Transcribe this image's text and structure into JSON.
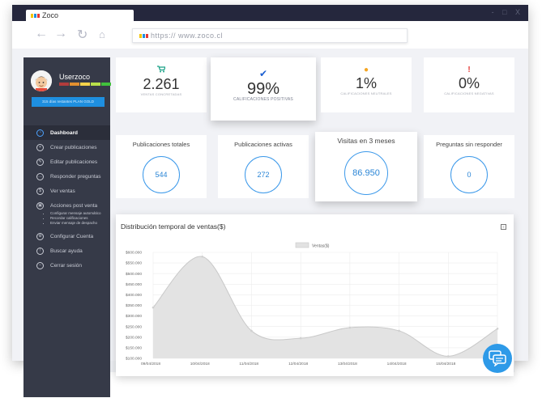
{
  "browser": {
    "tab_title": "Zoco",
    "url": "https:// www.zoco.cl",
    "window_controls": "- □ X",
    "logo_colors": [
      "#f5c400",
      "#1e8fe0",
      "#e53935"
    ]
  },
  "sidebar": {
    "username": "Userzoco",
    "plan_text": "315 días restantes PLAN GOLD",
    "reputation_colors": [
      "#b23c3c",
      "#e28f2f",
      "#f5d34a",
      "#b8e04a",
      "#41c23c"
    ],
    "menu": [
      {
        "label": "Dashboard",
        "icon": "dashboard-icon",
        "glyph": "◔"
      },
      {
        "label": "Crear publicaciones",
        "icon": "plus-icon",
        "glyph": "+"
      },
      {
        "label": "Editar publicaciones",
        "icon": "edit-icon",
        "glyph": "✎"
      },
      {
        "label": "Responder preguntas",
        "icon": "chat-icon",
        "glyph": "…"
      },
      {
        "label": "Ver ventas",
        "icon": "dollar-icon",
        "glyph": "$"
      },
      {
        "label": "Acciones post venta",
        "icon": "box-icon",
        "glyph": "▣"
      },
      {
        "label": "Configurar Cuenta",
        "icon": "gear-icon",
        "glyph": "⚙"
      },
      {
        "label": "Buscar ayuda",
        "icon": "help-icon",
        "glyph": "!"
      },
      {
        "label": "Cerrar sesión",
        "icon": "logout-icon",
        "glyph": "–"
      }
    ],
    "submenu": [
      "Configurar mensaje automático",
      "Recordar calificaciones",
      "Enviar mensaje de despacho"
    ]
  },
  "stats": [
    {
      "value": "2.261",
      "label": "VENTAS CONCRETADAS",
      "icon": "cart-icon",
      "icon_color": "#16a085",
      "glyph": "🛒"
    },
    {
      "value": "99%",
      "label": "CALIFICACIONES POSITIVAS",
      "icon": "check-icon",
      "icon_color": "#1b5fd1",
      "glyph": "✔"
    },
    {
      "value": "1%",
      "label": "CALIFICACIONES NEUTRALES",
      "icon": "circle-icon",
      "icon_color": "#f5a623",
      "glyph": "●"
    },
    {
      "value": "0%",
      "label": "CALIFICACIONES NEGATIVAS",
      "icon": "exclamation-icon",
      "icon_color": "#e53935",
      "glyph": "!"
    }
  ],
  "publications": [
    {
      "title": "Publicaciones totales",
      "value": "544"
    },
    {
      "title": "Publicaciones activas",
      "value": "272"
    },
    {
      "title": "Visitas en 3 meses",
      "value": "86.950"
    },
    {
      "title": "Preguntas sin responder",
      "value": "0"
    }
  ],
  "chart_card_title": "Distribución temporal de ventas($)",
  "chart_data": {
    "type": "area",
    "title": "",
    "legend": "Ventas($)",
    "legend_position": "top-center",
    "grid": true,
    "categories": [
      "09/04/2018",
      "10/04/2018",
      "11/04/2018",
      "12/04/2018",
      "13/04/2018",
      "14/04/2018",
      "15/04/2018",
      "16/04/2018"
    ],
    "y_tick_labels": [
      "$100.000",
      "$150.000",
      "$200.000",
      "$250.000",
      "$300.000",
      "$350.000",
      "$400.000",
      "$450.000",
      "$500.000",
      "$550.000",
      "$600.000"
    ],
    "ylim": [
      100000,
      600000
    ],
    "series": [
      {
        "name": "Ventas($)",
        "values": [
          340000,
          580000,
          230000,
          195000,
          245000,
          230000,
          110000,
          240000
        ]
      }
    ]
  }
}
